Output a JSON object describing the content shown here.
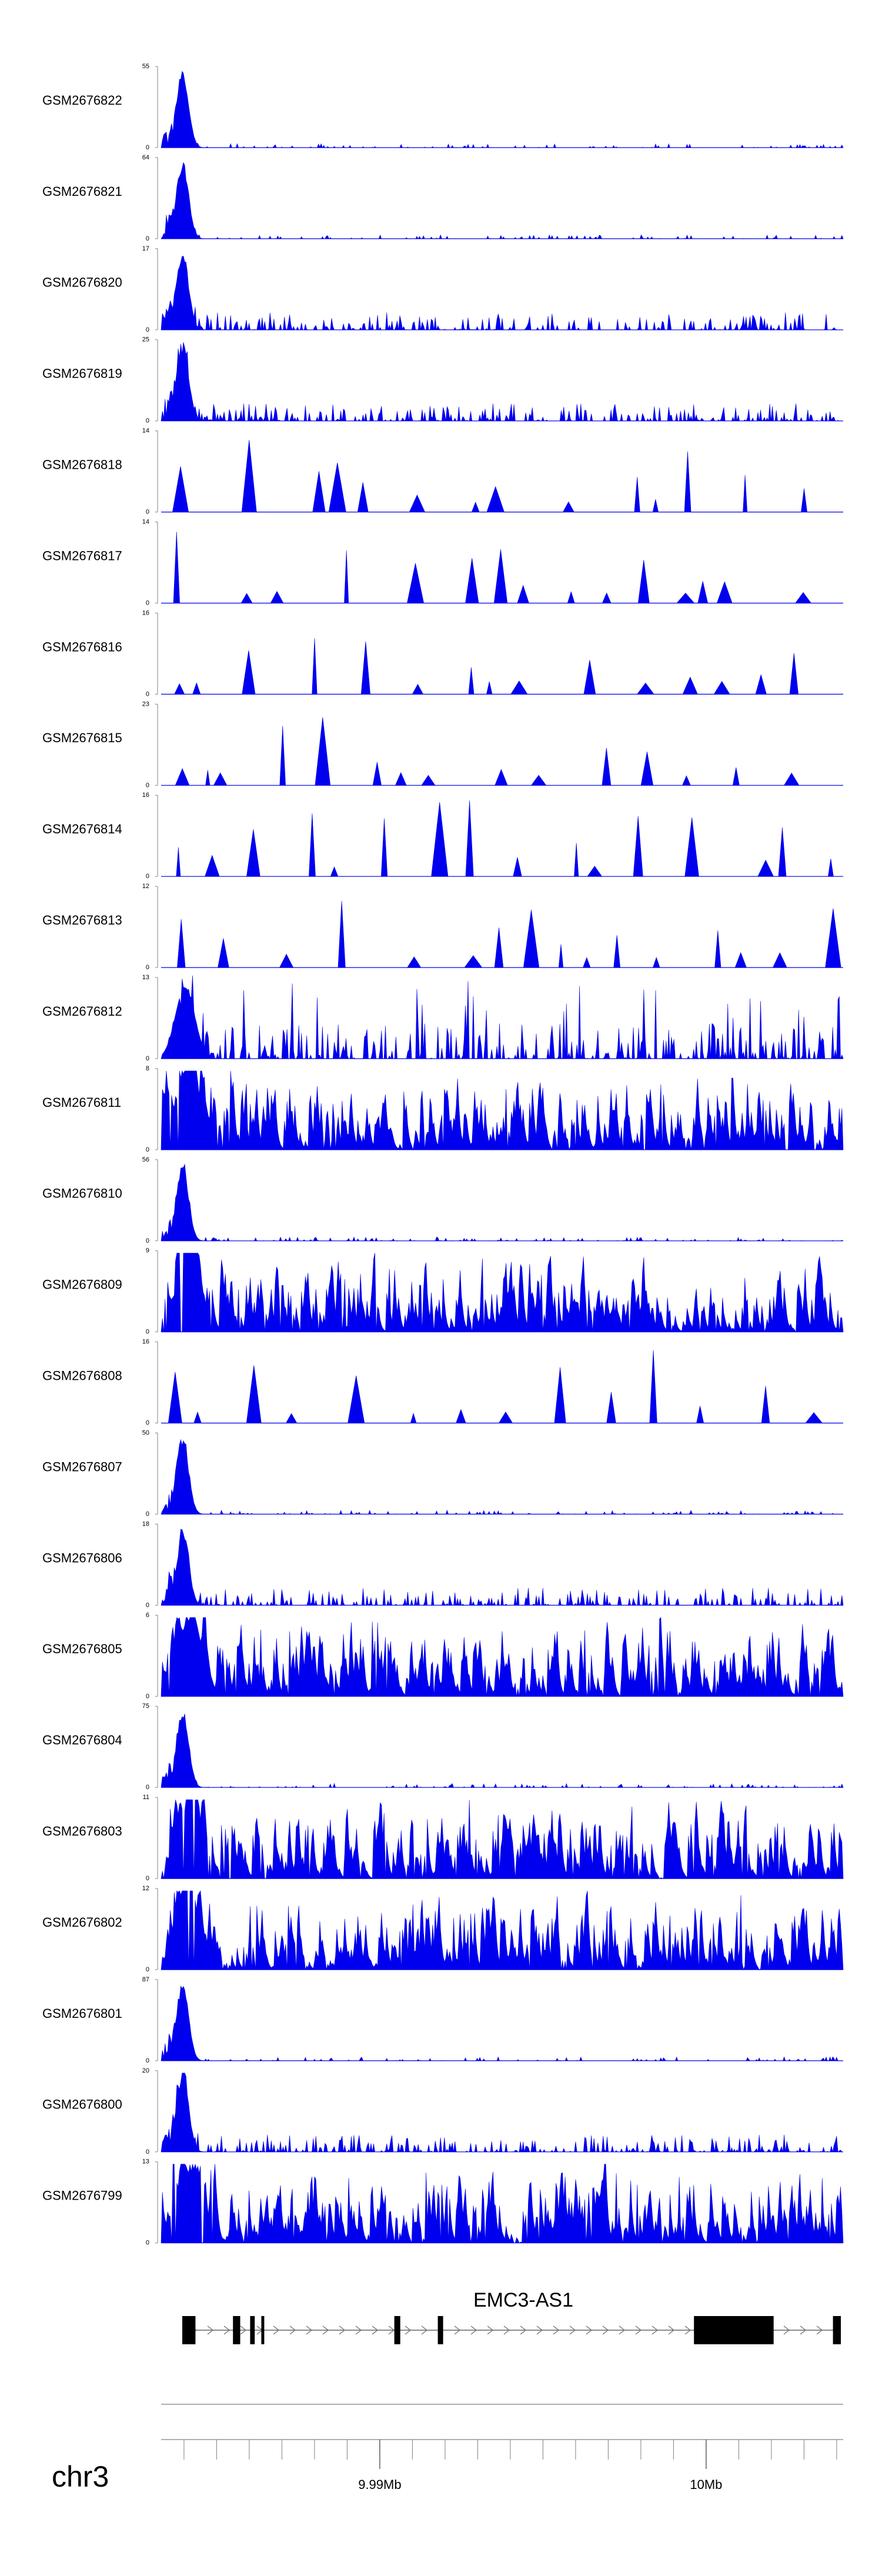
{
  "chart_data": {
    "type": "area",
    "chromosome": "chr3",
    "x_ticks": [
      {
        "pos": 9.99,
        "label": "9.99Mb"
      },
      {
        "pos": 10.0,
        "label": "10Mb"
      }
    ],
    "tracks": [
      {
        "name": "GSM2676822",
        "ymax": "55",
        "max": 55,
        "style": "peak"
      },
      {
        "name": "GSM2676821",
        "ymax": "64",
        "max": 64,
        "style": "peak"
      },
      {
        "name": "GSM2676820",
        "ymax": "17",
        "max": 17,
        "style": "peak-noisy"
      },
      {
        "name": "GSM2676819",
        "ymax": "25",
        "max": 25,
        "style": "peak-noisy"
      },
      {
        "name": "GSM2676818",
        "ymax": "14",
        "max": 14,
        "style": "sparse"
      },
      {
        "name": "GSM2676817",
        "ymax": "14",
        "max": 14,
        "style": "sparse"
      },
      {
        "name": "GSM2676816",
        "ymax": "16",
        "max": 16,
        "style": "sparse"
      },
      {
        "name": "GSM2676815",
        "ymax": "23",
        "max": 23,
        "style": "sparse"
      },
      {
        "name": "GSM2676814",
        "ymax": "16",
        "max": 16,
        "style": "sparse"
      },
      {
        "name": "GSM2676813",
        "ymax": "12",
        "max": 12,
        "style": "sparse"
      },
      {
        "name": "GSM2676812",
        "ymax": "13",
        "max": 13,
        "style": "mixed"
      },
      {
        "name": "GSM2676811",
        "ymax": "8",
        "max": 8,
        "style": "dense"
      },
      {
        "name": "GSM2676810",
        "ymax": "56",
        "max": 56,
        "style": "peak"
      },
      {
        "name": "GSM2676809",
        "ymax": "9",
        "max": 9,
        "style": "dense"
      },
      {
        "name": "GSM2676808",
        "ymax": "16",
        "max": 16,
        "style": "sparse"
      },
      {
        "name": "GSM2676807",
        "ymax": "50",
        "max": 50,
        "style": "peak"
      },
      {
        "name": "GSM2676806",
        "ymax": "18",
        "max": 18,
        "style": "peak-noisy"
      },
      {
        "name": "GSM2676805",
        "ymax": "6",
        "max": 6,
        "style": "dense"
      },
      {
        "name": "GSM2676804",
        "ymax": "75",
        "max": 75,
        "style": "peak"
      },
      {
        "name": "GSM2676803",
        "ymax": "11",
        "max": 11,
        "style": "dense"
      },
      {
        "name": "GSM2676802",
        "ymax": "12",
        "max": 12,
        "style": "dense"
      },
      {
        "name": "GSM2676801",
        "ymax": "87",
        "max": 87,
        "style": "peak"
      },
      {
        "name": "GSM2676800",
        "ymax": "20",
        "max": 20,
        "style": "peak-noisy"
      },
      {
        "name": "GSM2676799",
        "ymax": "13",
        "max": 13,
        "style": "dense"
      }
    ],
    "gene": {
      "name": "EMC3-AS1",
      "strand": "+",
      "exons": [
        {
          "start": 0.0,
          "end": 0.02
        },
        {
          "start": 0.077,
          "end": 0.088
        },
        {
          "start": 0.103,
          "end": 0.11
        },
        {
          "start": 0.12,
          "end": 0.124
        },
        {
          "start": 0.322,
          "end": 0.331
        },
        {
          "start": 0.388,
          "end": 0.396
        },
        {
          "start": 0.777,
          "end": 0.898
        },
        {
          "start": 0.988,
          "end": 1.0
        }
      ]
    },
    "colors": {
      "signal": "#0000ee",
      "gene": "#000000",
      "axis": "#808080"
    }
  }
}
